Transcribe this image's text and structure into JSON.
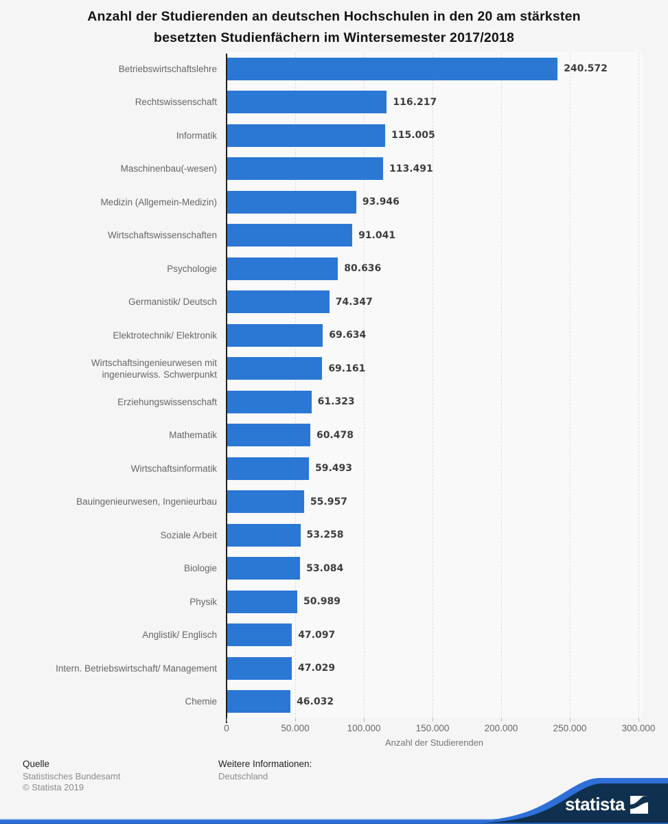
{
  "header": {
    "title_line1": "Anzahl der Studierenden an deutschen Hochschulen in den 20 am stärksten",
    "title_line2": "besetzten Studienfächern im Wintersemester 2017/2018"
  },
  "chart_data": {
    "type": "bar",
    "orientation": "horizontal",
    "title": "Anzahl der Studierenden an deutschen Hochschulen in den 20 am stärksten besetzten Studienfächern im Wintersemester 2017/2018",
    "categories": [
      "Betriebswirtschaftslehre",
      "Rechtswissenschaft",
      "Informatik",
      "Maschinenbau(-wesen)",
      "Medizin (Allgemein-Medizin)",
      "Wirtschaftswissenschaften",
      "Psychologie",
      "Germanistik/ Deutsch",
      "Elektrotechnik/ Elektronik",
      "Wirtschaftsingenieurwesen mit\ningenieurwiss. Schwerpunkt",
      "Erziehungswissenschaft",
      "Mathematik",
      "Wirtschaftsinformatik",
      "Bauingenieurwesen, Ingenieurbau",
      "Soziale Arbeit",
      "Biologie",
      "Physik",
      "Anglistik/ Englisch",
      "Intern. Betriebswirtschaft/ Management",
      "Chemie"
    ],
    "values": [
      240572,
      116217,
      115005,
      113491,
      93946,
      91041,
      80636,
      74347,
      69634,
      69161,
      61323,
      60478,
      59493,
      55957,
      53258,
      53084,
      50989,
      47097,
      47029,
      46032
    ],
    "value_labels": [
      "240.572",
      "116.217",
      "115.005",
      "113.491",
      "93.946",
      "91.041",
      "80.636",
      "74.347",
      "69.634",
      "69.161",
      "61.323",
      "60.478",
      "59.493",
      "55.957",
      "53.258",
      "53.084",
      "50.989",
      "47.097",
      "47.029",
      "46.032"
    ],
    "xlabel": "Anzahl der Studierenden",
    "xlim": [
      0,
      300000
    ],
    "x_ticks": {
      "values": [
        0,
        50000,
        100000,
        150000,
        200000,
        250000,
        300000
      ],
      "labels": [
        "0",
        "50.000",
        "100.000",
        "150.000",
        "200.000",
        "250.000",
        "300.000"
      ]
    },
    "grid": "vertical-dashed",
    "legend": "none",
    "bar_color": "#2b77d4"
  },
  "colors": {
    "bar_blue": "#2b77d4",
    "page_bg": "#f5f5f5",
    "plot_bg": "#f9f9f9",
    "axis_line": "#1f1f1f",
    "gridline": "#dedede",
    "navy": "#10304f",
    "stripe_blue": "#2e6fd8",
    "bottom_bar_blue": "#2a66c4"
  },
  "footer": {
    "source_heading": "Quelle",
    "source_lines": [
      "Statistisches Bundesamt",
      "© Statista 2019"
    ],
    "info_heading": "Weitere Informationen:",
    "info_lines": [
      "Deutschland"
    ],
    "brand": "statista"
  }
}
